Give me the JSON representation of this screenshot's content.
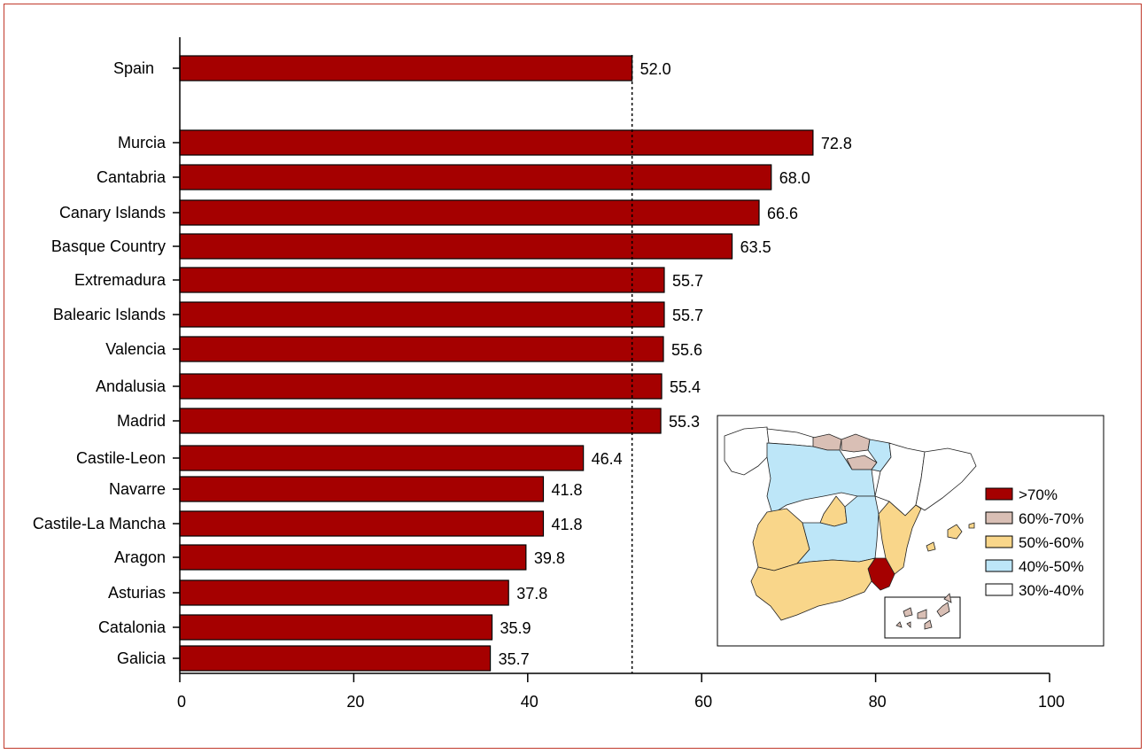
{
  "chart_data": {
    "type": "bar",
    "orientation": "horizontal",
    "title": "",
    "xlabel": "",
    "ylabel": "",
    "xlim": [
      0,
      100
    ],
    "x_ticks": [
      "0",
      "20",
      "40",
      "60",
      "80",
      "100"
    ],
    "reference_line": {
      "value": 52.0,
      "style": "dotted"
    },
    "bar_color": "#a50000",
    "categories": [
      "Spain",
      "Murcia",
      "Cantabria",
      "Canary Islands",
      "Basque Country",
      "Extremadura",
      "Balearic Islands",
      "Valencia",
      "Andalusia",
      "Madrid",
      "Castile-Leon",
      "Navarre",
      "Castile-La Mancha",
      "Aragon",
      "Asturias",
      "Catalonia",
      "Galicia"
    ],
    "values": [
      52.0,
      72.8,
      68.0,
      66.6,
      63.5,
      55.7,
      55.7,
      55.6,
      55.4,
      55.3,
      46.4,
      41.8,
      41.8,
      39.8,
      37.8,
      35.9,
      35.7
    ],
    "value_labels": [
      "52.0",
      "72.8",
      "68.0",
      "66.6",
      "63.5",
      "55.7",
      "55.7",
      "55.6",
      "55.4",
      "55.3",
      "46.4",
      "41.8",
      "41.8",
      "39.8",
      "37.8",
      "35.9",
      "35.7"
    ],
    "inset_map": {
      "legend": [
        {
          "label": ">70%",
          "color": "#a50000"
        },
        {
          "label": "60%-70%",
          "color": "#d9bfb5"
        },
        {
          "label": "50%-60%",
          "color": "#f9d68a"
        },
        {
          "label": "40%-50%",
          "color": "#bde6f8"
        },
        {
          "label": "30%-40%",
          "color": "#ffffff"
        }
      ]
    }
  }
}
